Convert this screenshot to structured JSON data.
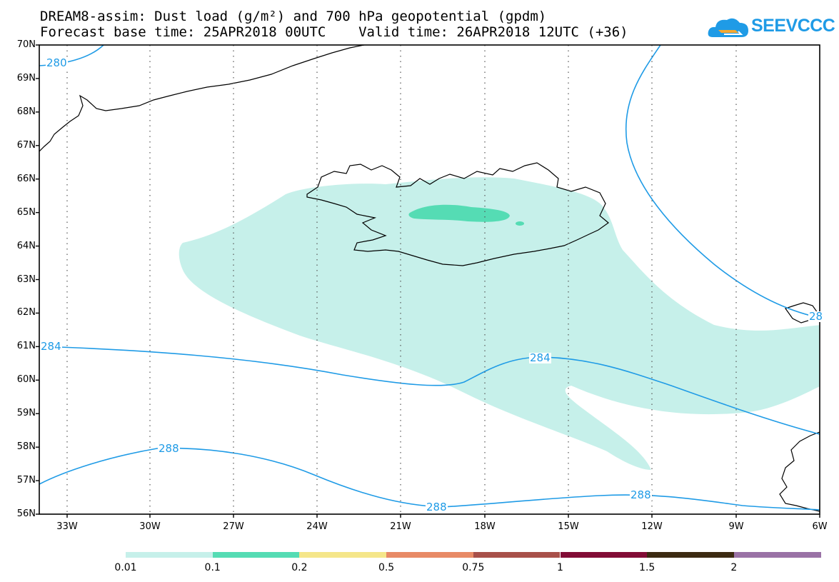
{
  "header": {
    "title_line1": "DREAM8-assim: Dust load (g/m²) and 700 hPa geopotential (gpdm)",
    "title_line2": "Forecast base time: 25APR2018 00UTC    Valid time: 26APR2018 12UTC (+36)"
  },
  "logo": {
    "text": "SEEVCCC",
    "icon": "cloud-icon",
    "color": "#1f9be6"
  },
  "map": {
    "lat_labels": [
      "70N",
      "69N",
      "68N",
      "67N",
      "66N",
      "65N",
      "64N",
      "63N",
      "62N",
      "61N",
      "60N",
      "59N",
      "58N",
      "57N",
      "56N"
    ],
    "lon_labels": [
      "33W",
      "30W",
      "27W",
      "24W",
      "21W",
      "18W",
      "15W",
      "12W",
      "9W",
      "6W"
    ],
    "contour_labels": [
      "280",
      "284",
      "284",
      "288",
      "288",
      "288",
      "28"
    ],
    "colors": {
      "dust_0_01": "#c6f0ea",
      "dust_0_1": "#55dcb4",
      "contour": "#1f9be6",
      "coast": "#000000"
    }
  },
  "colorbar": {
    "labels": [
      "0.01",
      "0.1",
      "0.2",
      "0.5",
      "0.75",
      "1",
      "1.5",
      "2"
    ],
    "colors": [
      "#c6f0ea",
      "#55dcb4",
      "#f5e68a",
      "#e88a66",
      "#a8504a",
      "#820c36",
      "#3c2a12",
      "#9a72a6"
    ]
  }
}
